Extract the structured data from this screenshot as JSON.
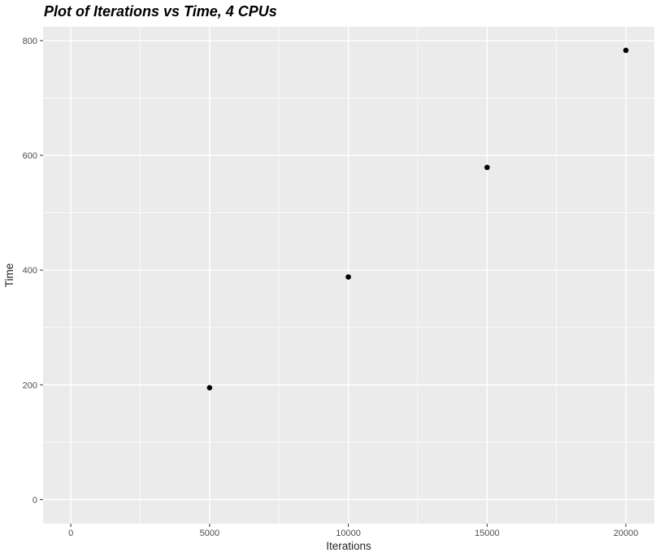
{
  "chart": {
    "title": "Plot of Iterations vs Time, 4 CPUs"
  },
  "chart_data": {
    "type": "scatter",
    "title": "Plot of Iterations vs Time, 4 CPUs",
    "xlabel": "Iterations",
    "ylabel": "Time",
    "x": [
      5000,
      10000,
      15000,
      20000
    ],
    "y": [
      195,
      388,
      579,
      783
    ],
    "xlim": [
      -1000,
      21025
    ],
    "ylim": [
      -42,
      824
    ],
    "x_ticks": {
      "values": [
        0,
        5000,
        10000,
        15000,
        20000
      ],
      "labels": [
        "0",
        "5000",
        "10000",
        "15000",
        "20000"
      ]
    },
    "y_ticks": {
      "values": [
        0,
        200,
        400,
        600,
        800
      ],
      "labels": [
        "0",
        "200",
        "400",
        "600",
        "800"
      ]
    },
    "x_minor": [
      2500,
      7500,
      12500,
      17500
    ],
    "y_minor": [
      100,
      300,
      500,
      700
    ],
    "grid": true,
    "legend": false,
    "style": {
      "panel_bg": "#EBEBEB",
      "grid_color": "#FFFFFF",
      "point_color": "#000000",
      "tick_mark_color": "#333333",
      "tick_label_color": "#4D4D4D",
      "axis_title_color": "#262626",
      "title_color": "#000000",
      "point_radius": 3.3
    }
  }
}
